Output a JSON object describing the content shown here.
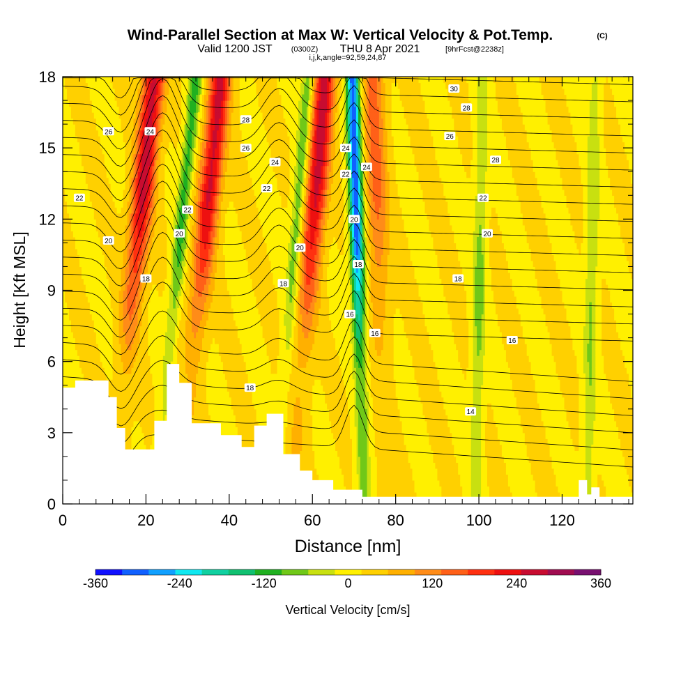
{
  "chart_data": {
    "type": "heatmap",
    "title": "Wind-Parallel Section at Max W: Vertical Velocity & Pot.Temp.",
    "title_mark": "(C)",
    "subtitle_valid": "Valid 1200 JST",
    "subtitle_utc": "(0300Z)",
    "subtitle_date": "THU 8 Apr 2021",
    "subtitle_fcst": "[9hrFcst@2238z]",
    "subtitle_params": "i,j,k,angle=92,59,24,87",
    "xlabel": "Distance [nm]",
    "ylabel": "Height [Kft MSL]",
    "xlim": [
      0,
      137
    ],
    "ylim": [
      0,
      18
    ],
    "x_ticks": [
      0,
      20,
      40,
      60,
      80,
      100,
      120
    ],
    "x_tick_labels": [
      "0",
      "20",
      "40",
      "60",
      "80",
      "100",
      "120"
    ],
    "y_ticks": [
      0,
      3,
      6,
      9,
      12,
      15,
      18
    ],
    "y_tick_labels": [
      "0",
      "3",
      "6",
      "9",
      "12",
      "15",
      "18"
    ],
    "colorbar": {
      "label": "Vertical Velocity [cm/s]",
      "min": -360,
      "max": 360,
      "tick_values": [
        -360,
        -240,
        -120,
        0,
        120,
        240,
        360
      ],
      "tick_labels": [
        "-360",
        "-240",
        "-120",
        "0",
        "120",
        "240",
        "360"
      ],
      "colors": [
        "#1010ff",
        "#1060ff",
        "#10a0ff",
        "#10e8f0",
        "#10d0a0",
        "#10c070",
        "#20b020",
        "#70c818",
        "#c8e010",
        "#fff000",
        "#ffd000",
        "#ffb000",
        "#ff8c18",
        "#ff6018",
        "#ff3010",
        "#ee1010",
        "#c80c30",
        "#a00c50",
        "#781070"
      ]
    },
    "updrafts_w_cm_s": [
      {
        "x_center": 17,
        "peak": 250
      },
      {
        "x_center": 33,
        "peak": 240
      },
      {
        "x_center": 59,
        "peak": 250
      },
      {
        "x_center": 76,
        "peak": 130
      }
    ],
    "downdrafts_w_cm_s": [
      {
        "x_center": 27,
        "peak": -130
      },
      {
        "x_center": 55,
        "peak": -110
      },
      {
        "x_center": 71,
        "peak": -330
      },
      {
        "x_center": 100,
        "peak": -90
      },
      {
        "x_center": 127,
        "peak": -80
      }
    ],
    "potential_temperature_labels": [
      "30",
      "28",
      "28",
      "28",
      "26",
      "26",
      "26",
      "24",
      "24",
      "24",
      "24",
      "22",
      "22",
      "22",
      "22",
      "22",
      "20",
      "20",
      "20",
      "20",
      "20",
      "18",
      "18",
      "18",
      "18",
      "18",
      "16",
      "16",
      "16",
      "14"
    ],
    "terrain_height_kft": [
      {
        "x": 0,
        "h": 4.9
      },
      {
        "x": 3,
        "h": 5.2
      },
      {
        "x": 8,
        "h": 5.2
      },
      {
        "x": 11,
        "h": 4.5
      },
      {
        "x": 13,
        "h": 3.2
      },
      {
        "x": 15,
        "h": 2.3
      },
      {
        "x": 19,
        "h": 2.3
      },
      {
        "x": 22,
        "h": 3.5
      },
      {
        "x": 25,
        "h": 5.9
      },
      {
        "x": 28,
        "h": 5.1
      },
      {
        "x": 31,
        "h": 3.4
      },
      {
        "x": 34,
        "h": 3.4
      },
      {
        "x": 38,
        "h": 2.9
      },
      {
        "x": 43,
        "h": 2.4
      },
      {
        "x": 46,
        "h": 3.3
      },
      {
        "x": 49,
        "h": 3.8
      },
      {
        "x": 53,
        "h": 2.1
      },
      {
        "x": 57,
        "h": 1.4
      },
      {
        "x": 60,
        "h": 1.0
      },
      {
        "x": 65,
        "h": 0.6
      },
      {
        "x": 72,
        "h": 0.3
      },
      {
        "x": 122,
        "h": 0.3
      },
      {
        "x": 124,
        "h": 1.0
      },
      {
        "x": 126,
        "h": 0.4
      },
      {
        "x": 127,
        "h": 0.7
      },
      {
        "x": 129,
        "h": 0.3
      },
      {
        "x": 137,
        "h": 0.3
      }
    ]
  }
}
